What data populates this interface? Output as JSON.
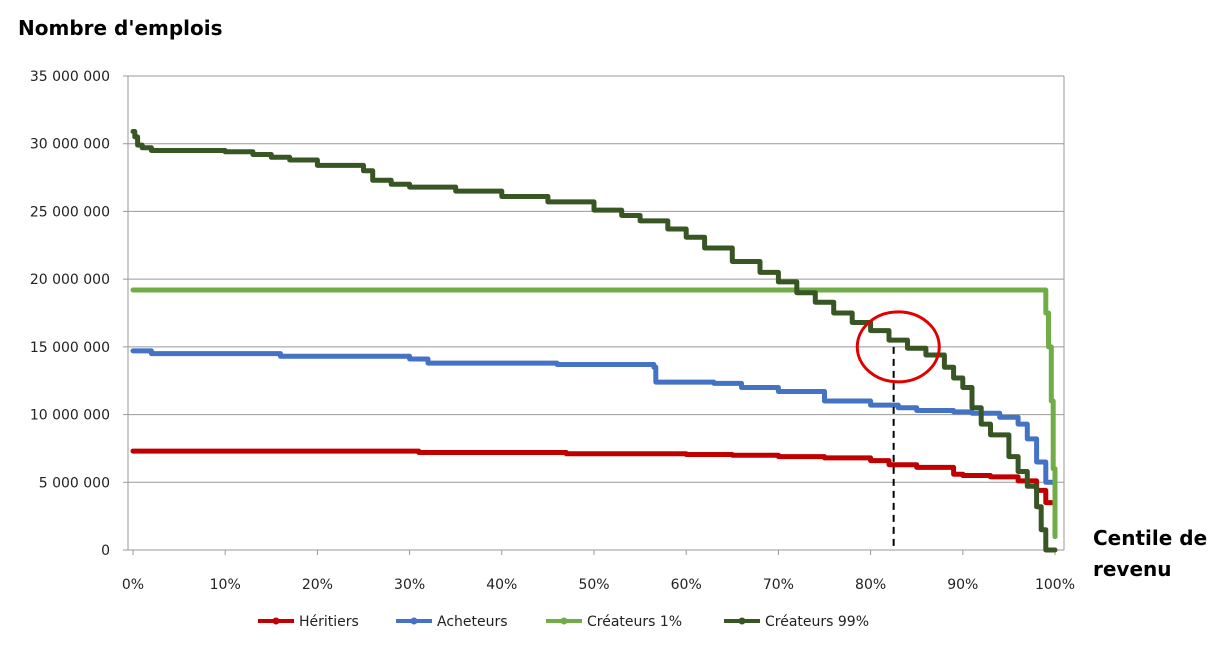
{
  "chart_data": {
    "type": "line",
    "ylabel": "Nombre d'emplois",
    "xlabel": [
      "Centile de",
      "revenu"
    ],
    "xlim": [
      0,
      100
    ],
    "ylim": [
      0,
      35000000
    ],
    "grid": "horizontal",
    "legend_position": "bottom",
    "x_ticks": [
      {
        "v": 0,
        "label": "0%"
      },
      {
        "v": 10,
        "label": "10%"
      },
      {
        "v": 20,
        "label": "20%"
      },
      {
        "v": 30,
        "label": "30%"
      },
      {
        "v": 40,
        "label": "40%"
      },
      {
        "v": 50,
        "label": "50%"
      },
      {
        "v": 60,
        "label": "60%"
      },
      {
        "v": 70,
        "label": "70%"
      },
      {
        "v": 80,
        "label": "80%"
      },
      {
        "v": 90,
        "label": "90%"
      },
      {
        "v": 100,
        "label": "100%"
      }
    ],
    "y_ticks": [
      {
        "v": 0,
        "label": "0"
      },
      {
        "v": 5000000,
        "label": "5 000 000"
      },
      {
        "v": 10000000,
        "label": "10 000 000"
      },
      {
        "v": 15000000,
        "label": "15 000 000"
      },
      {
        "v": 20000000,
        "label": "20 000 000"
      },
      {
        "v": 25000000,
        "label": "25 000 000"
      },
      {
        "v": 30000000,
        "label": "30 000 000"
      },
      {
        "v": 35000000,
        "label": "35 000 000"
      }
    ],
    "series": [
      {
        "name": "Héritiers",
        "color": "#c00000",
        "x": [
          0,
          10,
          20,
          30,
          31,
          40,
          47,
          50,
          60,
          65,
          70,
          75,
          80,
          82,
          85,
          89,
          90,
          93,
          96,
          98,
          99,
          100
        ],
        "y": [
          7300000,
          7300000,
          7300000,
          7300000,
          7200000,
          7200000,
          7100000,
          7100000,
          7050000,
          7000000,
          6900000,
          6800000,
          6600000,
          6300000,
          6100000,
          5600000,
          5500000,
          5400000,
          5100000,
          4400000,
          3500000,
          1500000
        ]
      },
      {
        "name": "Acheteurs",
        "color": "#4472c4",
        "x": [
          0,
          2,
          15,
          16,
          30,
          32,
          46,
          56.5,
          56.7,
          63,
          66,
          70,
          75,
          80,
          83,
          85,
          89,
          91,
          94,
          96,
          97,
          98,
          99,
          100
        ],
        "y": [
          14700000,
          14500000,
          14500000,
          14300000,
          14100000,
          13800000,
          13700000,
          13500000,
          12400000,
          12300000,
          12000000,
          11700000,
          11000000,
          10700000,
          10500000,
          10300000,
          10200000,
          10100000,
          9800000,
          9300000,
          8200000,
          6500000,
          5000000,
          1000000
        ]
      },
      {
        "name": "Créateurs 1%",
        "color": "#70ad47",
        "x": [
          0,
          10,
          20,
          30,
          40,
          50,
          60,
          70,
          80,
          90,
          98.5,
          99,
          99.3,
          99.6,
          99.8,
          100
        ],
        "y": [
          19200000,
          19200000,
          19200000,
          19200000,
          19200000,
          19200000,
          19200000,
          19200000,
          19200000,
          19200000,
          19200000,
          17500000,
          15000000,
          11000000,
          6000000,
          1000000
        ]
      },
      {
        "name": "Créateurs 99%",
        "color": "#375623",
        "x": [
          0,
          0.2,
          0.5,
          1,
          2,
          5,
          10,
          13,
          15,
          17,
          20,
          25,
          26,
          28,
          30,
          35,
          40,
          45,
          50,
          53,
          55,
          58,
          60,
          62,
          65,
          68,
          70,
          72,
          74,
          76,
          78,
          80,
          82,
          84,
          86,
          88,
          89,
          90,
          91,
          92,
          93,
          95,
          96,
          97,
          98,
          98.5,
          99,
          100
        ],
        "y": [
          30900000,
          30500000,
          29900000,
          29700000,
          29500000,
          29500000,
          29400000,
          29200000,
          29000000,
          28800000,
          28400000,
          28000000,
          27300000,
          27000000,
          26800000,
          26500000,
          26100000,
          25700000,
          25100000,
          24700000,
          24300000,
          23700000,
          23100000,
          22300000,
          21300000,
          20500000,
          19800000,
          19000000,
          18300000,
          17500000,
          16800000,
          16200000,
          15500000,
          14900000,
          14400000,
          13500000,
          12700000,
          12000000,
          10500000,
          9300000,
          8500000,
          6900000,
          5800000,
          4700000,
          3200000,
          1500000,
          0,
          0
        ]
      }
    ],
    "annotations": {
      "circle_center": [
        83,
        15000000
      ],
      "dashed_line_x": 82.5,
      "dashed_line_y_top": 15000000
    }
  }
}
